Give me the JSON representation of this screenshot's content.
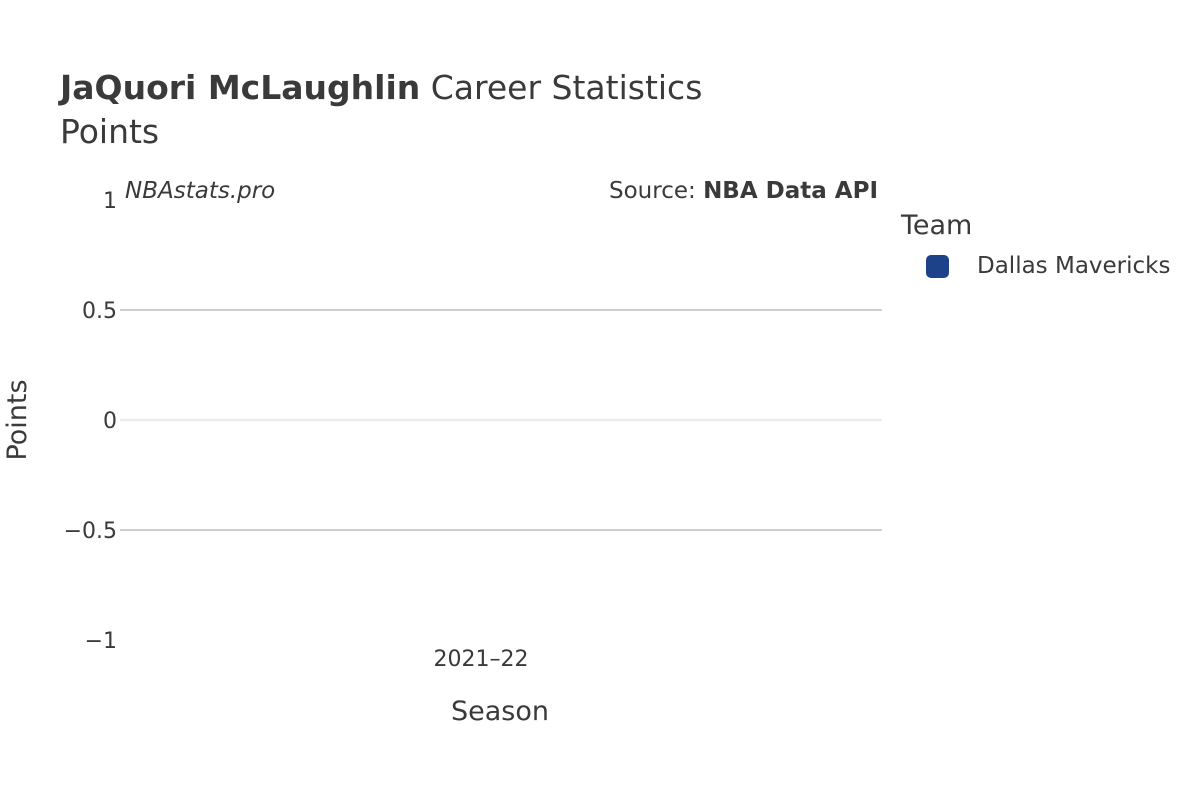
{
  "header": {
    "player_name": "JaQuori McLaughlin",
    "title_rest": "Career Statistics",
    "subtitle": "Points"
  },
  "watermark": "NBAstats.pro",
  "source": {
    "prefix": "Source:",
    "name": "NBA Data API"
  },
  "legend": {
    "title": "Team",
    "items": [
      {
        "label": "Dallas Mavericks",
        "color": "#1d428a"
      }
    ]
  },
  "chart_data": {
    "type": "bar",
    "title": "JaQuori McLaughlin Career Statistics",
    "subtitle": "Points",
    "xlabel": "Season",
    "ylabel": "Points",
    "categories": [
      "2021–22"
    ],
    "series": [
      {
        "name": "Dallas Mavericks",
        "values": [
          0
        ],
        "color": "#1d428a"
      }
    ],
    "ylim": [
      -1,
      1
    ],
    "yticks": [
      1,
      0.5,
      0,
      -0.5,
      -1
    ],
    "ytick_labels": [
      "1",
      "0.5",
      "0",
      "−0.5",
      "−1"
    ],
    "grid": true,
    "legend_position": "right"
  }
}
